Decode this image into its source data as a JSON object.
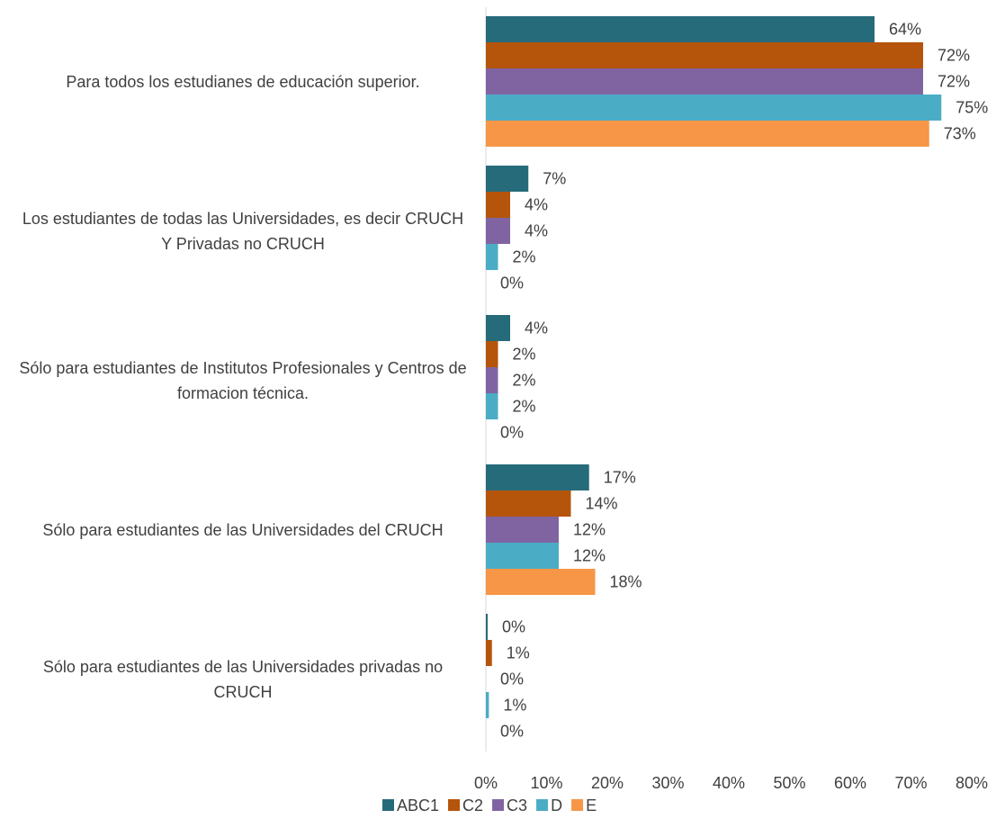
{
  "chart_data": {
    "type": "hbar",
    "categories": [
      "Para todos los estudianes de educación superior.",
      "Los estudiantes de todas las Universidades, es decir CRUCH Y Privadas no CRUCH",
      "Sólo para estudiantes de Institutos Profesionales y Centros de formacion técnica.",
      "Sólo para estudiantes de las Universidades del CRUCH",
      "Sólo para estudiantes de las Universidades privadas no CRUCH"
    ],
    "series": [
      {
        "name": "ABC1",
        "color": "#266b7a",
        "values": [
          64,
          7,
          4,
          17,
          0.3
        ],
        "value_labels": [
          "64%",
          "7%",
          "4%",
          "17%",
          "0%"
        ]
      },
      {
        "name": "C2",
        "color": "#b5540b",
        "values": [
          72,
          4,
          2,
          14,
          1
        ],
        "value_labels": [
          "72%",
          "4%",
          "2%",
          "14%",
          "1%"
        ]
      },
      {
        "name": "C3",
        "color": "#8064a2",
        "values": [
          72,
          4,
          2,
          12,
          0
        ],
        "value_labels": [
          "72%",
          "4%",
          "2%",
          "12%",
          "0%"
        ]
      },
      {
        "name": "D",
        "color": "#4bacc6",
        "values": [
          75,
          2,
          2,
          12,
          0.5
        ],
        "value_labels": [
          "75%",
          "2%",
          "2%",
          "12%",
          "1%"
        ]
      },
      {
        "name": "E",
        "color": "#f79646",
        "values": [
          73,
          0,
          0,
          18,
          0
        ],
        "value_labels": [
          "73%",
          "0%",
          "0%",
          "18%",
          "0%"
        ]
      }
    ],
    "xlim": [
      0,
      80
    ],
    "xticks": [
      {
        "value": 0,
        "label": "0%"
      },
      {
        "value": 10,
        "label": "10%"
      },
      {
        "value": 20,
        "label": "20%"
      },
      {
        "value": 30,
        "label": "30%"
      },
      {
        "value": 40,
        "label": "40%"
      },
      {
        "value": 50,
        "label": "50%"
      },
      {
        "value": 60,
        "label": "60%"
      },
      {
        "value": 70,
        "label": "70%"
      },
      {
        "value": 80,
        "label": "80%"
      }
    ],
    "legend": "bottom"
  }
}
